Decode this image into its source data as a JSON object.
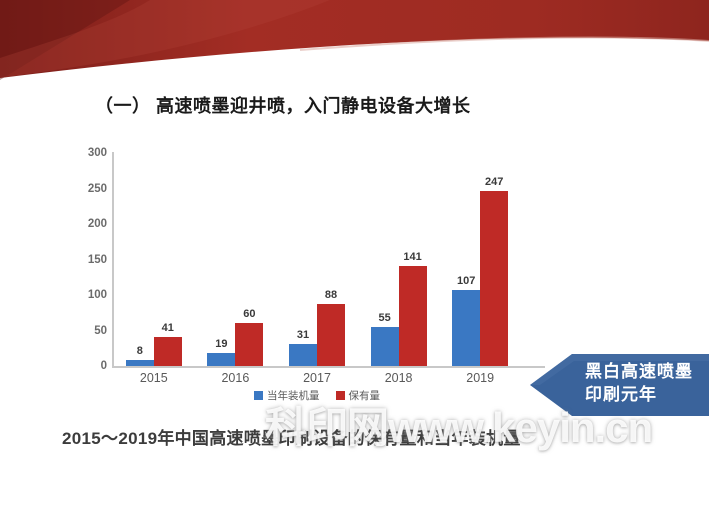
{
  "slide": {
    "title": "（一） 高速喷墨迎井喷，入门静电设备大增长",
    "caption": "2015～2019年中国高速喷墨印刷设备的保有量和当年装机量",
    "watermark": "科印网www.keyin.cn",
    "callout": {
      "line1": "黑白高速喷墨",
      "line2": "印刷元年",
      "color": "#3a639b"
    },
    "ribbon_colors": {
      "dark": "#6a1713",
      "main": "#a02c24",
      "highlight": "#b5453a",
      "edge": "#d9a89e"
    }
  },
  "chart_data": {
    "type": "bar",
    "categories": [
      "2015",
      "2016",
      "2017",
      "2018",
      "2019"
    ],
    "series": [
      {
        "name": "当年装机量",
        "color": "#3a78c3",
        "values": [
          8,
          19,
          31,
          55,
          107
        ]
      },
      {
        "name": "保有量",
        "color": "#bf2a26",
        "values": [
          41,
          60,
          88,
          141,
          247
        ]
      }
    ],
    "title": "",
    "xlabel": "",
    "ylabel": "",
    "ylim": [
      0,
      300
    ],
    "ytick_step": 50,
    "grid": false,
    "legend_position": "bottom",
    "bar_labels": true
  }
}
